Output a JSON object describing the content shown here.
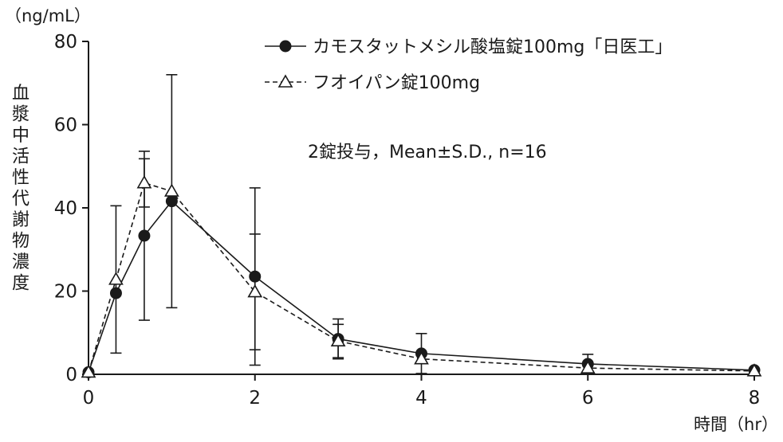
{
  "chart_data": {
    "type": "line",
    "y_unit": "（ng/mL）",
    "x_unit": "時間（hr）",
    "ylabel": "血漿中活性代謝物濃度",
    "ylim": [
      0,
      80
    ],
    "xlim": [
      0,
      8
    ],
    "x_ticks": [
      0,
      2,
      4,
      6,
      8
    ],
    "y_ticks": [
      0,
      20,
      40,
      60,
      80
    ],
    "grid": false,
    "legend_position": "top-right",
    "annotation": "2錠投与，Mean±S.D., n=16",
    "series": [
      {
        "name": "カモスタットメシル酸塩錠100mg「日医工」",
        "marker": "filled-circle",
        "line": "solid",
        "color": "#1a1a1a",
        "x": [
          0,
          0.33,
          0.67,
          1,
          2,
          3,
          4,
          6,
          8
        ],
        "y": [
          0.5,
          19.5,
          33.3,
          41.6,
          23.5,
          8.5,
          5.0,
          2.5,
          1.0
        ],
        "sd": [
          0,
          0,
          20.3,
          0,
          21.3,
          4.8,
          4.8,
          2.3,
          0
        ]
      },
      {
        "name": "フオイパン錠100mg",
        "marker": "open-triangle",
        "line": "dashed",
        "color": "#1a1a1a",
        "x": [
          0,
          0.33,
          0.67,
          1,
          2,
          3,
          4,
          6,
          8
        ],
        "y": [
          0.5,
          22.8,
          46.0,
          44.0,
          19.8,
          8.0,
          3.7,
          1.5,
          0.8
        ],
        "sd": [
          0,
          17.7,
          5.8,
          28.0,
          13.9,
          4.0,
          0,
          0,
          0
        ]
      }
    ]
  }
}
